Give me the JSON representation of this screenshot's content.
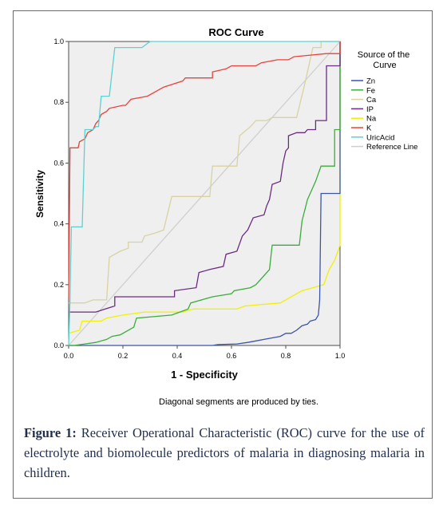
{
  "chart_data": {
    "type": "line",
    "title": "ROC Curve",
    "xlabel": "1 - Specificity",
    "ylabel": "Sensitivity",
    "xlim": [
      0,
      1
    ],
    "ylim": [
      0,
      1
    ],
    "xticks": [
      "0.0",
      "0.2",
      "0.4",
      "0.6",
      "0.8",
      "1.0"
    ],
    "yticks": [
      "0.0",
      "0.2",
      "0.4",
      "0.6",
      "0.8",
      "1.0"
    ],
    "grid": false,
    "legend_title": "Source of the Curve",
    "legend_position": "right",
    "note": "Diagonal segments are produced by ties.",
    "series": [
      {
        "name": "Zn",
        "color": "#3a55a8",
        "points": [
          [
            0,
            0
          ],
          [
            0.53,
            0
          ],
          [
            0.55,
            0.003
          ],
          [
            0.62,
            0.005
          ],
          [
            0.66,
            0.01
          ],
          [
            0.69,
            0.015
          ],
          [
            0.72,
            0.02
          ],
          [
            0.75,
            0.025
          ],
          [
            0.78,
            0.03
          ],
          [
            0.8,
            0.04
          ],
          [
            0.82,
            0.04
          ],
          [
            0.84,
            0.05
          ],
          [
            0.86,
            0.065
          ],
          [
            0.88,
            0.07
          ],
          [
            0.89,
            0.08
          ],
          [
            0.91,
            0.085
          ],
          [
            0.92,
            0.1
          ],
          [
            0.925,
            0.15
          ],
          [
            0.93,
            0.5
          ],
          [
            1.0,
            0.5
          ],
          [
            1.0,
            1.0
          ]
        ]
      },
      {
        "name": "Fe",
        "color": "#3aae3a",
        "points": [
          [
            0,
            0
          ],
          [
            0.02,
            0
          ],
          [
            0.06,
            0.005
          ],
          [
            0.1,
            0.01
          ],
          [
            0.14,
            0.02
          ],
          [
            0.16,
            0.03
          ],
          [
            0.19,
            0.035
          ],
          [
            0.22,
            0.05
          ],
          [
            0.24,
            0.06
          ],
          [
            0.25,
            0.09
          ],
          [
            0.38,
            0.1
          ],
          [
            0.44,
            0.12
          ],
          [
            0.45,
            0.14
          ],
          [
            0.53,
            0.16
          ],
          [
            0.6,
            0.17
          ],
          [
            0.61,
            0.18
          ],
          [
            0.67,
            0.19
          ],
          [
            0.69,
            0.2
          ],
          [
            0.74,
            0.25
          ],
          [
            0.75,
            0.33
          ],
          [
            0.85,
            0.33
          ],
          [
            0.86,
            0.41
          ],
          [
            0.88,
            0.48
          ],
          [
            0.91,
            0.54
          ],
          [
            0.93,
            0.59
          ],
          [
            0.98,
            0.59
          ],
          [
            0.98,
            0.71
          ],
          [
            1.0,
            0.71
          ],
          [
            1.0,
            1.0
          ]
        ]
      },
      {
        "name": "Ca",
        "color": "#d9d2a0",
        "points": [
          [
            0,
            0.14
          ],
          [
            0.06,
            0.14
          ],
          [
            0.09,
            0.15
          ],
          [
            0.14,
            0.15
          ],
          [
            0.15,
            0.29
          ],
          [
            0.19,
            0.31
          ],
          [
            0.22,
            0.32
          ],
          [
            0.22,
            0.34
          ],
          [
            0.27,
            0.34
          ],
          [
            0.28,
            0.36
          ],
          [
            0.32,
            0.37
          ],
          [
            0.35,
            0.38
          ],
          [
            0.38,
            0.49
          ],
          [
            0.52,
            0.49
          ],
          [
            0.53,
            0.59
          ],
          [
            0.62,
            0.59
          ],
          [
            0.63,
            0.69
          ],
          [
            0.67,
            0.72
          ],
          [
            0.69,
            0.74
          ],
          [
            0.73,
            0.74
          ],
          [
            0.75,
            0.75
          ],
          [
            0.84,
            0.75
          ],
          [
            0.87,
            0.86
          ],
          [
            0.9,
            0.98
          ],
          [
            0.93,
            0.98
          ],
          [
            0.93,
            1.0
          ],
          [
            1.0,
            1.0
          ]
        ]
      },
      {
        "name": "IP",
        "color": "#6a2c82",
        "points": [
          [
            0,
            0.11
          ],
          [
            0.1,
            0.11
          ],
          [
            0.17,
            0.13
          ],
          [
            0.17,
            0.16
          ],
          [
            0.39,
            0.16
          ],
          [
            0.39,
            0.18
          ],
          [
            0.47,
            0.19
          ],
          [
            0.48,
            0.24
          ],
          [
            0.52,
            0.25
          ],
          [
            0.57,
            0.26
          ],
          [
            0.58,
            0.3
          ],
          [
            0.62,
            0.31
          ],
          [
            0.64,
            0.36
          ],
          [
            0.66,
            0.38
          ],
          [
            0.68,
            0.42
          ],
          [
            0.72,
            0.43
          ],
          [
            0.73,
            0.46
          ],
          [
            0.74,
            0.48
          ],
          [
            0.75,
            0.53
          ],
          [
            0.78,
            0.54
          ],
          [
            0.79,
            0.6
          ],
          [
            0.8,
            0.64
          ],
          [
            0.81,
            0.65
          ],
          [
            0.81,
            0.69
          ],
          [
            0.84,
            0.7
          ],
          [
            0.87,
            0.7
          ],
          [
            0.88,
            0.71
          ],
          [
            0.91,
            0.71
          ],
          [
            0.91,
            0.74
          ],
          [
            0.95,
            0.74
          ],
          [
            0.95,
            0.92
          ],
          [
            1.0,
            0.92
          ],
          [
            1.0,
            1.0
          ]
        ]
      },
      {
        "name": "Na",
        "color": "#f0f000",
        "points": [
          [
            0,
            0.04
          ],
          [
            0.04,
            0.05
          ],
          [
            0.05,
            0.08
          ],
          [
            0.12,
            0.08
          ],
          [
            0.14,
            0.09
          ],
          [
            0.2,
            0.1
          ],
          [
            0.28,
            0.11
          ],
          [
            0.42,
            0.11
          ],
          [
            0.46,
            0.12
          ],
          [
            0.62,
            0.12
          ],
          [
            0.65,
            0.13
          ],
          [
            0.78,
            0.14
          ],
          [
            0.8,
            0.15
          ],
          [
            0.84,
            0.17
          ],
          [
            0.86,
            0.18
          ],
          [
            0.9,
            0.19
          ],
          [
            0.94,
            0.2
          ],
          [
            0.96,
            0.25
          ],
          [
            0.98,
            0.28
          ],
          [
            1.0,
            0.33
          ],
          [
            1.0,
            1.0
          ]
        ]
      },
      {
        "name": "K",
        "color": "#e8423c",
        "points": [
          [
            0,
            0.15
          ],
          [
            0.005,
            0.65
          ],
          [
            0.035,
            0.65
          ],
          [
            0.04,
            0.67
          ],
          [
            0.06,
            0.68
          ],
          [
            0.07,
            0.7
          ],
          [
            0.09,
            0.71
          ],
          [
            0.1,
            0.73
          ],
          [
            0.11,
            0.74
          ],
          [
            0.12,
            0.76
          ],
          [
            0.14,
            0.77
          ],
          [
            0.15,
            0.78
          ],
          [
            0.2,
            0.79
          ],
          [
            0.21,
            0.79
          ],
          [
            0.23,
            0.81
          ],
          [
            0.29,
            0.82
          ],
          [
            0.35,
            0.85
          ],
          [
            0.42,
            0.87
          ],
          [
            0.43,
            0.88
          ],
          [
            0.53,
            0.88
          ],
          [
            0.53,
            0.9
          ],
          [
            0.58,
            0.91
          ],
          [
            0.6,
            0.92
          ],
          [
            0.69,
            0.92
          ],
          [
            0.71,
            0.93
          ],
          [
            0.77,
            0.94
          ],
          [
            0.81,
            0.94
          ],
          [
            0.83,
            0.95
          ],
          [
            0.95,
            0.96
          ],
          [
            1.0,
            0.96
          ],
          [
            1.0,
            1.0
          ]
        ]
      },
      {
        "name": "UricAcid",
        "color": "#5ad2d2",
        "points": [
          [
            0,
            0
          ],
          [
            0.005,
            0.15
          ],
          [
            0.01,
            0.39
          ],
          [
            0.05,
            0.39
          ],
          [
            0.06,
            0.71
          ],
          [
            0.09,
            0.71
          ],
          [
            0.1,
            0.72
          ],
          [
            0.11,
            0.72
          ],
          [
            0.12,
            0.82
          ],
          [
            0.15,
            0.82
          ],
          [
            0.16,
            0.9
          ],
          [
            0.17,
            0.98
          ],
          [
            0.27,
            0.98
          ],
          [
            0.3,
            1.0
          ],
          [
            1.0,
            1.0
          ]
        ]
      },
      {
        "name": "Reference Line",
        "color": "#cfcfcf",
        "points": [
          [
            0,
            0
          ],
          [
            1,
            1
          ]
        ]
      }
    ]
  },
  "caption": {
    "label": "Figure 1:",
    "text": "Receiver Operational Characteristic (ROC) curve for the use of electrolyte and biomolecule predictors of malaria in diagnosing malaria in children."
  }
}
